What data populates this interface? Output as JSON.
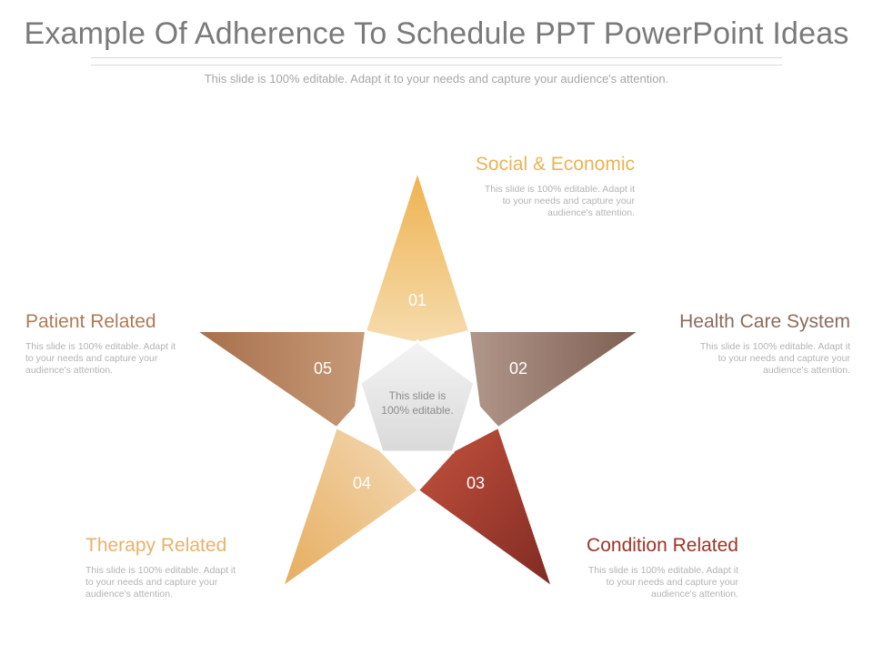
{
  "title": "Example Of Adherence To Schedule PPT PowerPoint Ideas",
  "subtitle": "This slide is 100% editable. Adapt it to your needs and capture your audience's attention.",
  "center_text": [
    "This slide is",
    "100% editable."
  ],
  "points": [
    {
      "number": "01",
      "label": "Social & Economic",
      "desc": [
        "This slide is 100% editable. Adapt it",
        "to your needs and capture your",
        "audience's attention."
      ],
      "color": "#e9b356"
    },
    {
      "number": "02",
      "label": "Health Care System",
      "desc": [
        "This slide is 100% editable. Adapt it",
        "to your needs and capture your",
        "audience's attention."
      ],
      "color": "#8c6b5b"
    },
    {
      "number": "03",
      "label": "Condition Related",
      "desc": [
        "This slide is 100% editable. Adapt it",
        "to your needs and capture your",
        "audience's attention."
      ],
      "color": "#9c3528"
    },
    {
      "number": "04",
      "label": "Therapy Related",
      "desc": [
        "This slide is 100% editable. Adapt it",
        "to your needs and capture your",
        "audience's attention."
      ],
      "color": "#e8b26a"
    },
    {
      "number": "05",
      "label": "Patient Related",
      "desc": [
        "This slide is 100% editable. Adapt it",
        "to your needs and capture your",
        "audience's attention."
      ],
      "color": "#b07a55"
    }
  ]
}
